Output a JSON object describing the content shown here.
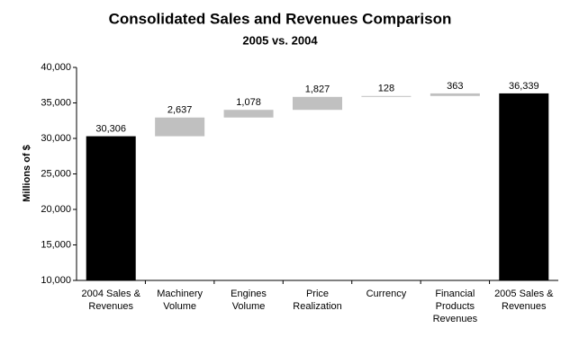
{
  "chart_data": {
    "type": "waterfall",
    "title": "Consolidated Sales and Revenues Comparison",
    "subtitle": "2005 vs. 2004",
    "y_label": "Millions of $",
    "categories": [
      "2004 Sales & Revenues",
      "Machinery Volume",
      "Engines Volume",
      "Price Realization",
      "Currency",
      "Financial Products Revenues",
      "2005 Sales & Revenues"
    ],
    "values": [
      30306,
      2637,
      1078,
      1827,
      128,
      363,
      36339
    ],
    "value_labels": [
      "30,306",
      "2,637",
      "1,078",
      "1,827",
      "128",
      "363",
      "36,339"
    ],
    "measure": [
      "total",
      "relative",
      "relative",
      "relative",
      "relative",
      "relative",
      "total"
    ],
    "total_color": "#000000",
    "increase_color": "#c0c0c0",
    "ylim": [
      10000,
      40000
    ],
    "yticks": [
      {
        "value": 10000,
        "label": "10,000"
      },
      {
        "value": 15000,
        "label": "15,000"
      },
      {
        "value": 20000,
        "label": "20,000"
      },
      {
        "value": 25000,
        "label": "25,000"
      },
      {
        "value": 30000,
        "label": "30,000"
      },
      {
        "value": 35000,
        "label": "35,000"
      },
      {
        "value": 40000,
        "label": "40,000"
      }
    ],
    "grid": false
  }
}
